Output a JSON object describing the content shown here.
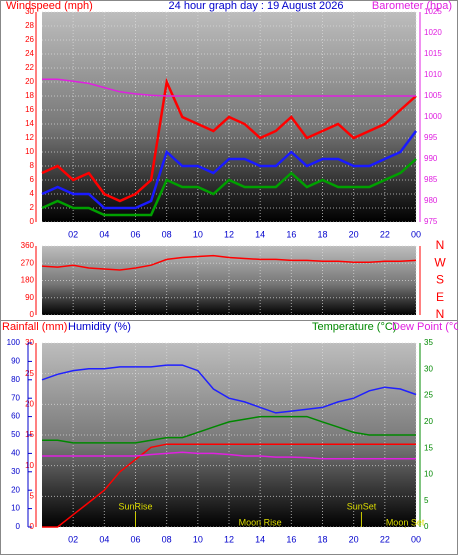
{
  "chart_data": [
    {
      "type": "line",
      "title": "24 hour graph day : 19 August 2026",
      "ylabel": "Windspeed (mph)",
      "y2label": "Barometer (hpa)",
      "xlim": [
        0,
        24
      ],
      "xticks": [
        {
          "value": 2,
          "label": "02"
        },
        {
          "value": 4,
          "label": "04"
        },
        {
          "value": 6,
          "label": "06"
        },
        {
          "value": 8,
          "label": "08"
        },
        10,
        12,
        14,
        16,
        18,
        20,
        22,
        {
          "value": 24,
          "label": "00"
        }
      ],
      "ylim": [
        0,
        30
      ],
      "yticks": [
        0,
        2,
        4,
        6,
        8,
        10,
        12,
        14,
        16,
        18,
        20,
        22,
        24,
        26,
        28,
        30
      ],
      "y2lim": [
        975,
        1025
      ],
      "y2ticks": [
        975,
        980,
        985,
        990,
        995,
        1000,
        1005,
        1010,
        1015,
        1020,
        1025
      ],
      "grid": true,
      "x": [
        0,
        1,
        2,
        3,
        4,
        5,
        6,
        7,
        8,
        9,
        10,
        11,
        12,
        13,
        14,
        15,
        16,
        17,
        18,
        19,
        20,
        21,
        22,
        23,
        24
      ],
      "series": [
        {
          "color": "#ff0000",
          "values": [
            7,
            8,
            6,
            7,
            4,
            3,
            4,
            6,
            20,
            15,
            14,
            13,
            15,
            14,
            12,
            13,
            15,
            12,
            13,
            14,
            12,
            13,
            14,
            16,
            18
          ]
        },
        {
          "color": "#1a1aff",
          "values": [
            4,
            5,
            4,
            4,
            2,
            2,
            2,
            3,
            10,
            8,
            8,
            7,
            9,
            9,
            8,
            8,
            10,
            8,
            9,
            9,
            8,
            8,
            9,
            10,
            13
          ]
        },
        {
          "color": "#00a000",
          "values": [
            2,
            3,
            2,
            2,
            1,
            1,
            1,
            1,
            6,
            5,
            5,
            4,
            6,
            5,
            5,
            5,
            7,
            5,
            6,
            5,
            5,
            5,
            6,
            7,
            9
          ]
        },
        {
          "color": "#e020e0",
          "axis": "y2",
          "values": [
            1009,
            1009,
            1008.5,
            1008,
            1007,
            1006,
            1005.5,
            1005.2,
            1005,
            1005,
            1005,
            1005,
            1005,
            1005,
            1005,
            1005,
            1005,
            1005,
            1005,
            1005,
            1005,
            1005,
            1005,
            1005,
            1005
          ]
        }
      ]
    },
    {
      "type": "line",
      "xlim": [
        0,
        24
      ],
      "xticks": [
        2,
        4,
        6,
        8,
        10,
        12,
        14,
        16,
        18,
        20,
        22,
        24
      ],
      "ylim": [
        0,
        360
      ],
      "yticks": [
        0,
        90,
        180,
        270,
        360
      ],
      "y2lim": [
        0,
        360
      ],
      "y2ticks": [
        {
          "value": 0,
          "label": "N"
        },
        {
          "value": 90,
          "label": "E"
        },
        {
          "value": 180,
          "label": "S"
        },
        {
          "value": 270,
          "label": "W"
        },
        {
          "value": 360,
          "label": "N"
        }
      ],
      "grid": true,
      "x": [
        0,
        1,
        2,
        3,
        4,
        5,
        6,
        7,
        8,
        9,
        10,
        11,
        12,
        13,
        14,
        15,
        16,
        17,
        18,
        19,
        20,
        21,
        22,
        23,
        24
      ],
      "series": [
        {
          "color": "#ff0000",
          "values": [
            255,
            250,
            260,
            245,
            240,
            235,
            245,
            260,
            290,
            300,
            305,
            310,
            300,
            295,
            290,
            290,
            285,
            285,
            280,
            280,
            275,
            275,
            280,
            280,
            285
          ]
        }
      ]
    },
    {
      "type": "line",
      "ylabel": "Rainfall (mm)",
      "y3label": "Humidity (%)",
      "y2label": "Temperature (°C)",
      "y4label": "Dew Point (°C)",
      "xlim": [
        0,
        24
      ],
      "xticks": [
        {
          "value": 2,
          "label": "02"
        },
        {
          "value": 4,
          "label": "04"
        },
        {
          "value": 6,
          "label": "06"
        },
        {
          "value": 8,
          "label": "08"
        },
        10,
        12,
        14,
        16,
        18,
        20,
        22,
        {
          "value": 24,
          "label": "00"
        }
      ],
      "ylim": [
        0,
        30
      ],
      "yticks": [
        0,
        5,
        10,
        15,
        20,
        25,
        30
      ],
      "y3lim": [
        0,
        100
      ],
      "y3ticks": [
        0,
        10,
        20,
        30,
        40,
        50,
        60,
        70,
        80,
        90,
        100
      ],
      "y2lim": [
        0,
        35
      ],
      "y2ticks": [
        0,
        5,
        10,
        15,
        20,
        25,
        30,
        35
      ],
      "grid": true,
      "x": [
        0,
        1,
        2,
        3,
        4,
        5,
        6,
        7,
        8,
        9,
        10,
        11,
        12,
        13,
        14,
        15,
        16,
        17,
        18,
        19,
        20,
        21,
        22,
        23,
        24
      ],
      "series": [
        {
          "color": "#ff0000",
          "values": [
            0,
            0,
            2,
            4,
            6,
            9,
            11,
            13,
            13.5,
            13.5,
            13.5,
            13.5,
            13.5,
            13.5,
            13.5,
            13.5,
            13.5,
            13.5,
            13.5,
            13.5,
            13.5,
            13.5,
            13.5,
            13.5,
            13.5
          ]
        },
        {
          "color": "#2020ff",
          "axis": "y3",
          "values": [
            80,
            83,
            85,
            86,
            86,
            87,
            87,
            87,
            88,
            88,
            85,
            75,
            70,
            68,
            65,
            62,
            63,
            64,
            65,
            68,
            70,
            74,
            76,
            75,
            72
          ]
        },
        {
          "color": "#008800",
          "axis": "y2",
          "values": [
            16.5,
            16.5,
            16,
            16,
            16,
            16,
            16,
            16.5,
            17,
            17,
            18,
            19,
            20,
            20.5,
            21,
            21,
            21,
            21,
            20,
            19,
            18,
            17.5,
            17.5,
            17.5,
            17.5
          ]
        },
        {
          "color": "#e020e0",
          "axis": "y2",
          "values": [
            13.5,
            13.5,
            13.5,
            13.5,
            13.5,
            13.5,
            13.5,
            13.8,
            14,
            14.2,
            14,
            14,
            13.8,
            13.5,
            13.5,
            13.3,
            13.3,
            13.2,
            13,
            13,
            13,
            13,
            13,
            13,
            13
          ]
        }
      ],
      "annotations": [
        {
          "text": "SunRise",
          "x": 6
        },
        {
          "text": "Moon Rise",
          "x": 14
        },
        {
          "text": "SunSet",
          "x": 20.5
        },
        {
          "text": "Moon Set",
          "x": 23.3
        }
      ]
    }
  ]
}
